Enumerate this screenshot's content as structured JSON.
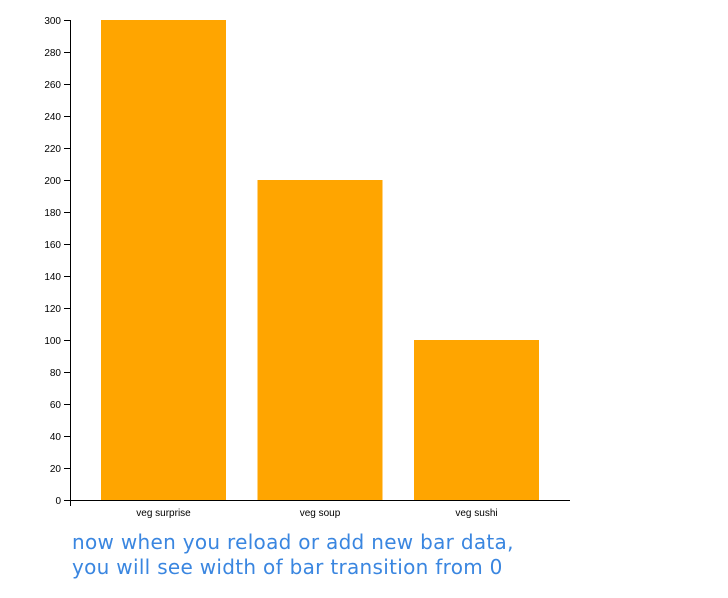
{
  "chart_data": {
    "type": "bar",
    "categories": [
      "veg surprise",
      "veg soup",
      "veg sushi"
    ],
    "values": [
      300,
      200,
      100
    ],
    "ylim": [
      0,
      300
    ],
    "yticks": [
      0,
      20,
      40,
      60,
      80,
      100,
      120,
      140,
      160,
      180,
      200,
      220,
      240,
      260,
      280,
      300
    ],
    "bar_color": "#FFA500",
    "grid": false,
    "legend": "none"
  },
  "caption": {
    "line1": "now when you reload or add new bar data,",
    "line2": "you will see width of bar transition from 0"
  },
  "colors": {
    "caption": "#3a86e0",
    "axis": "#000000"
  }
}
